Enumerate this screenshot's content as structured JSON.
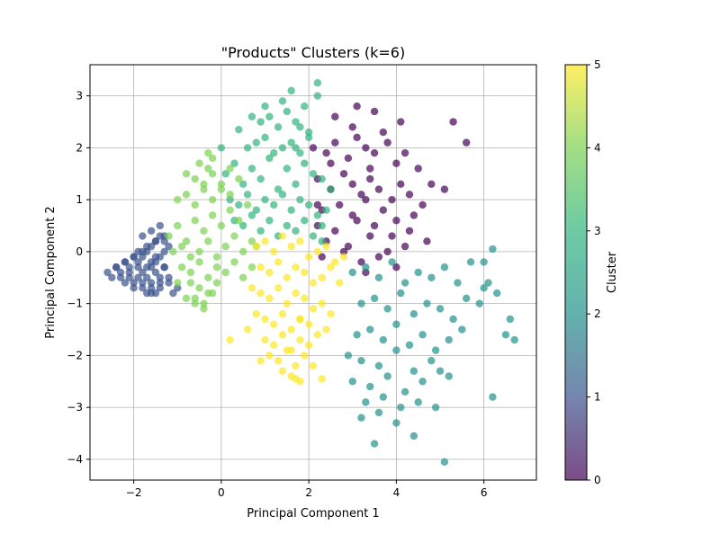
{
  "chart_data": {
    "type": "scatter",
    "title": "\"Products\" Clusters (k=6)",
    "xlabel": "Principal Component 1",
    "ylabel": "Principal Component 2",
    "xlim": [
      -3.0,
      7.2
    ],
    "ylim": [
      -4.4,
      3.6
    ],
    "xticks": [
      -2,
      0,
      2,
      4,
      6
    ],
    "yticks": [
      -4,
      -3,
      -2,
      -1,
      0,
      1,
      2,
      3
    ],
    "grid": true,
    "colorbar": {
      "label": "Cluster",
      "range": [
        0,
        5
      ],
      "ticks": [
        0,
        1,
        2,
        3,
        4,
        5
      ],
      "colormap": "viridis",
      "colors": [
        "#440154",
        "#3b528b",
        "#21918c",
        "#2fb47c",
        "#7ad151",
        "#fde725"
      ]
    },
    "marker_alpha": 0.7,
    "series": [
      {
        "cluster": 0,
        "color": "#440154",
        "x": [
          2.1,
          2.4,
          2.6,
          2.9,
          3.1,
          3.3,
          3.5,
          3.8,
          4.0,
          4.2,
          4.5,
          4.8,
          5.1,
          5.3,
          5.6,
          2.2,
          2.5,
          2.8,
          3.0,
          3.2,
          3.4,
          3.6,
          3.9,
          4.1,
          4.3,
          4.6,
          2.3,
          2.7,
          3.0,
          3.3,
          3.7,
          4.0,
          4.4,
          2.2,
          2.6,
          3.1,
          3.5,
          3.9,
          4.3,
          4.7,
          2.4,
          2.9,
          3.4,
          3.8,
          4.2,
          2.3,
          2.8,
          3.2,
          3.6,
          4.0,
          3.0,
          3.5,
          2.6,
          3.1,
          3.7,
          3.3,
          2.2,
          4.1,
          3.4,
          2.5
        ],
        "y": [
          2.0,
          1.9,
          2.1,
          1.8,
          2.2,
          2.0,
          1.9,
          2.1,
          1.7,
          1.9,
          1.6,
          1.3,
          1.2,
          2.5,
          2.1,
          1.4,
          1.2,
          1.5,
          1.3,
          1.1,
          1.4,
          1.2,
          1.0,
          1.3,
          1.1,
          0.9,
          0.8,
          0.9,
          0.7,
          1.0,
          0.8,
          0.6,
          0.7,
          0.5,
          0.4,
          0.6,
          0.5,
          0.3,
          0.4,
          0.2,
          0.2,
          0.1,
          0.3,
          0.0,
          0.1,
          -0.1,
          0.0,
          -0.2,
          -0.1,
          -0.3,
          2.4,
          2.7,
          2.6,
          2.8,
          2.3,
          -0.4,
          0.9,
          2.5,
          1.6,
          1.7
        ]
      },
      {
        "cluster": 1,
        "color": "#3b528b",
        "x": [
          -2.6,
          -2.4,
          -2.3,
          -2.2,
          -2.1,
          -2.0,
          -1.9,
          -1.8,
          -1.7,
          -1.6,
          -1.5,
          -1.4,
          -1.3,
          -1.2,
          -2.5,
          -2.3,
          -2.1,
          -1.9,
          -1.7,
          -1.5,
          -1.3,
          -2.2,
          -2.0,
          -1.8,
          -1.6,
          -1.4,
          -1.2,
          -2.0,
          -1.8,
          -1.6,
          -1.4,
          -1.9,
          -1.7,
          -1.5,
          -1.3,
          -1.8,
          -1.6,
          -1.4,
          -1.7,
          -1.5,
          -1.6,
          -2.4,
          -2.2,
          -2.0,
          -1.8,
          -1.6,
          -1.4,
          -2.1,
          -1.9,
          -1.7,
          -1.5,
          -1.3,
          -1.8,
          -1.6,
          -1.4,
          -1.2,
          -1.5,
          -1.3,
          -1.0,
          -1.1
        ],
        "y": [
          -0.4,
          -0.3,
          -0.4,
          -0.2,
          -0.3,
          -0.1,
          -0.2,
          -0.1,
          0.0,
          0.1,
          0.2,
          0.3,
          0.2,
          0.1,
          -0.5,
          -0.5,
          -0.5,
          -0.5,
          -0.5,
          -0.4,
          -0.3,
          -0.6,
          -0.6,
          -0.6,
          -0.6,
          -0.6,
          -0.5,
          -0.7,
          -0.7,
          -0.7,
          -0.7,
          0.0,
          0.1,
          0.2,
          0.3,
          0.3,
          0.4,
          0.5,
          -0.8,
          -0.8,
          -0.8,
          -0.3,
          -0.2,
          -0.1,
          0.0,
          -0.2,
          -0.1,
          -0.4,
          -0.3,
          -0.3,
          -0.1,
          -0.3,
          -0.4,
          -0.3,
          -0.5,
          -0.6,
          -0.2,
          0.0,
          -0.7,
          -0.8
        ]
      },
      {
        "cluster": 2,
        "color": "#21918c",
        "x": [
          3.0,
          3.3,
          3.6,
          3.9,
          4.2,
          4.5,
          4.8,
          5.1,
          5.4,
          5.7,
          6.0,
          6.3,
          6.6,
          3.2,
          3.5,
          3.8,
          4.1,
          4.4,
          4.7,
          5.0,
          5.3,
          5.6,
          5.9,
          6.2,
          6.5,
          3.1,
          3.4,
          3.7,
          4.0,
          4.3,
          4.6,
          4.9,
          5.2,
          5.5,
          6.1,
          6.7,
          2.9,
          3.2,
          3.6,
          4.0,
          4.4,
          4.8,
          5.2,
          3.0,
          3.4,
          3.8,
          4.2,
          4.6,
          5.0,
          3.3,
          3.7,
          4.1,
          4.5,
          4.9,
          3.2,
          3.6,
          4.0,
          4.4,
          5.1,
          6.0,
          6.2,
          3.5
        ],
        "y": [
          -0.4,
          -0.3,
          -0.5,
          -0.2,
          -0.6,
          -0.4,
          -0.5,
          -0.3,
          -0.6,
          -0.2,
          -0.7,
          -0.8,
          -1.3,
          -1.0,
          -0.9,
          -1.1,
          -0.8,
          -1.2,
          -1.0,
          -1.1,
          -1.3,
          -0.9,
          -1.0,
          -2.8,
          -1.6,
          -1.6,
          -1.5,
          -1.7,
          -1.4,
          -1.8,
          -1.6,
          -1.9,
          -1.7,
          -1.5,
          -0.6,
          -1.7,
          -2.0,
          -2.1,
          -2.2,
          -1.9,
          -2.3,
          -2.1,
          -2.4,
          -2.5,
          -2.6,
          -2.4,
          -2.7,
          -2.5,
          -2.3,
          -2.9,
          -2.8,
          -3.0,
          -2.9,
          -3.0,
          -3.2,
          -3.1,
          -3.3,
          -3.55,
          -4.05,
          -0.2,
          0.05,
          -3.7
        ]
      },
      {
        "cluster": 3,
        "color": "#2fb47c",
        "x": [
          0.1,
          0.3,
          0.5,
          0.7,
          0.9,
          1.1,
          1.3,
          1.5,
          1.7,
          1.9,
          2.1,
          2.3,
          2.5,
          0.2,
          0.4,
          0.6,
          0.8,
          1.0,
          1.2,
          1.4,
          1.6,
          1.8,
          2.0,
          2.2,
          2.4,
          0.3,
          0.5,
          0.7,
          0.9,
          1.1,
          1.3,
          1.5,
          1.7,
          1.9,
          2.1,
          2.3,
          0.6,
          0.8,
          1.0,
          1.2,
          1.4,
          1.6,
          1.8,
          2.0,
          0.9,
          1.1,
          1.3,
          1.5,
          1.7,
          1.9,
          1.0,
          1.4,
          1.8,
          2.2,
          0.7,
          1.6,
          2.0,
          2.2,
          1.7,
          0.0,
          0.4,
          2.3
        ],
        "y": [
          1.5,
          1.7,
          1.3,
          1.6,
          1.4,
          1.8,
          1.2,
          1.6,
          1.3,
          1.7,
          1.5,
          1.4,
          1.2,
          1.0,
          0.9,
          1.1,
          0.8,
          1.0,
          0.9,
          1.1,
          0.8,
          1.0,
          0.9,
          0.7,
          0.8,
          0.6,
          0.5,
          0.7,
          0.4,
          0.6,
          0.3,
          0.5,
          0.4,
          0.6,
          0.3,
          0.5,
          2.0,
          2.1,
          2.2,
          1.9,
          2.0,
          2.1,
          1.9,
          2.3,
          2.5,
          2.6,
          2.4,
          2.7,
          2.5,
          2.8,
          2.8,
          2.9,
          2.4,
          3.0,
          2.6,
          3.1,
          2.2,
          3.25,
          2.0,
          2.0,
          2.35,
          0.2
        ]
      },
      {
        "cluster": 4,
        "color": "#7ad151",
        "x": [
          -1.2,
          -1.0,
          -0.8,
          -0.6,
          -0.4,
          -0.2,
          0.0,
          0.2,
          0.4,
          0.6,
          -1.1,
          -0.9,
          -0.7,
          -0.5,
          -0.3,
          -0.1,
          0.1,
          0.3,
          0.5,
          0.7,
          -1.0,
          -0.8,
          -0.6,
          -0.4,
          -0.2,
          0.0,
          0.2,
          0.4,
          -0.9,
          -0.7,
          -0.5,
          -0.3,
          -0.1,
          0.1,
          0.3,
          -0.8,
          -0.6,
          -0.4,
          -0.2,
          0.0,
          0.2,
          -0.7,
          -0.5,
          -0.3,
          -0.1,
          -0.6,
          -0.4,
          -0.2,
          -0.5,
          -0.3,
          -0.4,
          -0.6,
          -0.8,
          -1.0,
          0.5,
          0.7,
          0.8,
          -0.3,
          -0.2
        ],
        "y": [
          0.3,
          0.5,
          0.2,
          0.6,
          0.4,
          0.7,
          0.5,
          0.8,
          0.6,
          0.9,
          0.0,
          0.1,
          -0.1,
          0.0,
          0.2,
          -0.1,
          0.1,
          0.3,
          0.0,
          0.2,
          1.0,
          1.1,
          0.9,
          1.2,
          1.0,
          1.3,
          1.1,
          1.4,
          -0.3,
          -0.4,
          -0.2,
          -0.5,
          -0.3,
          -0.4,
          -0.2,
          1.5,
          1.4,
          1.3,
          1.5,
          1.2,
          1.6,
          -0.6,
          -0.7,
          -0.8,
          -0.6,
          -0.9,
          -1.0,
          -0.8,
          1.7,
          1.6,
          -1.1,
          -1.0,
          -0.9,
          -0.6,
          -0.5,
          -0.3,
          0.1,
          1.9,
          1.8
        ]
      },
      {
        "cluster": 5,
        "color": "#fde725",
        "x": [
          0.8,
          1.0,
          1.2,
          1.4,
          1.6,
          1.8,
          2.0,
          2.2,
          2.4,
          2.6,
          2.8,
          0.9,
          1.1,
          1.3,
          1.5,
          1.7,
          1.9,
          2.1,
          2.3,
          2.5,
          2.7,
          0.7,
          0.9,
          1.1,
          1.3,
          1.5,
          1.7,
          1.9,
          2.1,
          2.3,
          2.5,
          0.8,
          1.0,
          1.2,
          1.4,
          1.6,
          1.8,
          2.0,
          2.2,
          2.4,
          1.0,
          1.2,
          1.4,
          1.6,
          1.8,
          2.0,
          1.1,
          1.3,
          1.5,
          1.7,
          1.9,
          1.4,
          1.6,
          1.8,
          2.1,
          1.7,
          1.8,
          0.2,
          0.6,
          0.9,
          2.3
        ],
        "y": [
          0.1,
          0.2,
          0.0,
          0.3,
          0.1,
          0.2,
          -0.1,
          0.0,
          0.1,
          -0.2,
          -0.1,
          -0.3,
          -0.4,
          -0.2,
          -0.5,
          -0.3,
          -0.4,
          -0.6,
          -0.5,
          -0.3,
          -0.6,
          -0.7,
          -0.8,
          -0.9,
          -0.7,
          -1.0,
          -0.8,
          -0.9,
          -1.1,
          -1.0,
          -1.2,
          -1.2,
          -1.3,
          -1.4,
          -1.2,
          -1.5,
          -1.3,
          -1.4,
          -1.6,
          -1.5,
          -1.7,
          -1.8,
          -1.6,
          -1.9,
          -1.7,
          -1.8,
          -2.0,
          -2.1,
          -1.9,
          -2.2,
          -2.0,
          -2.3,
          -2.4,
          -2.5,
          -2.2,
          -2.45,
          -1.3,
          -1.7,
          -1.5,
          -2.1,
          -2.45
        ]
      }
    ]
  }
}
